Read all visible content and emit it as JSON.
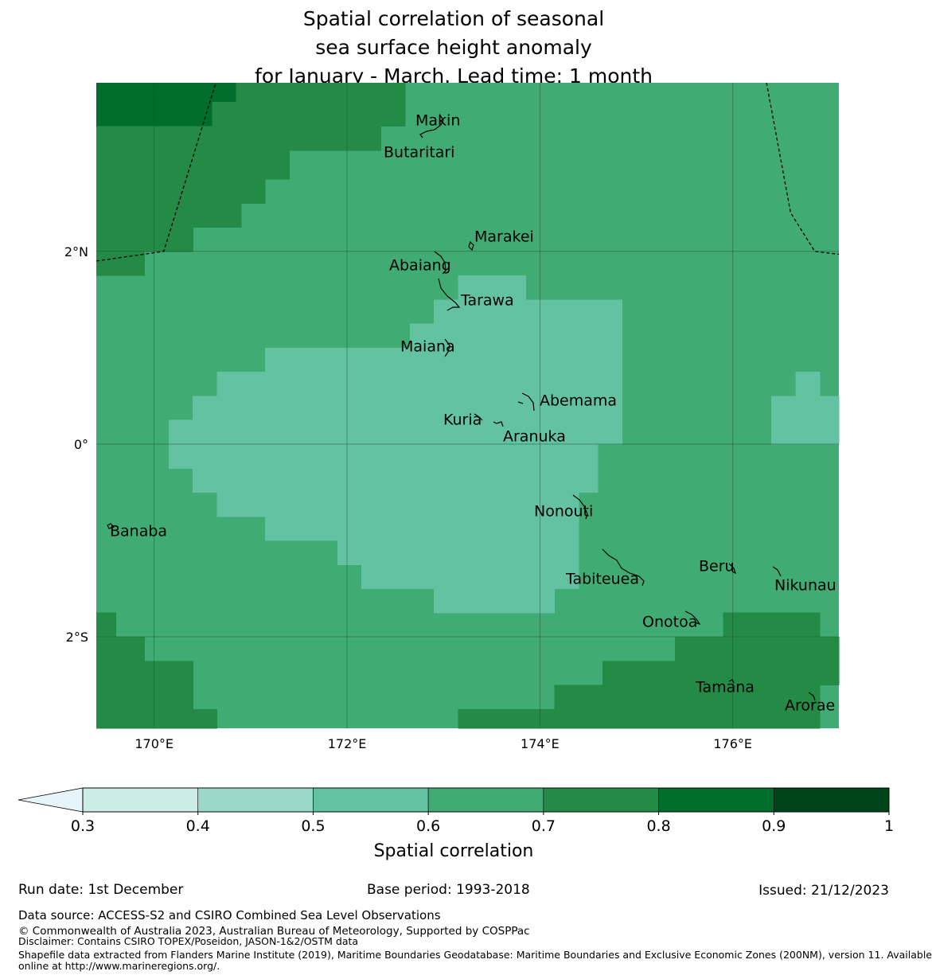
{
  "title": {
    "line1": "Spatial correlation of seasonal",
    "line2": "sea surface height anomaly",
    "line3": "for January - March. Lead time: 1 month"
  },
  "map": {
    "lon_range": [
      169.4,
      177.1
    ],
    "lat_range": [
      -2.95,
      3.75
    ],
    "lon_ticks": [
      {
        "value": 170,
        "label": "170°E"
      },
      {
        "value": 172,
        "label": "172°E"
      },
      {
        "value": 174,
        "label": "174°E"
      },
      {
        "value": 176,
        "label": "176°E"
      }
    ],
    "lat_ticks": [
      {
        "value": 2,
        "label": "2°N"
      },
      {
        "value": 0,
        "label": "0°"
      },
      {
        "value": -2,
        "label": "2°S"
      }
    ],
    "islands": [
      {
        "name": "Makin",
        "lon": 173.0,
        "lat": 3.25
      },
      {
        "name": "Butaritari",
        "lon": 172.8,
        "lat": 3.08
      },
      {
        "name": "Marakei",
        "lon": 173.28,
        "lat": 2.0
      },
      {
        "name": "Abaiang",
        "lon": 172.95,
        "lat": 1.85
      },
      {
        "name": "Tarawa",
        "lon": 173.05,
        "lat": 1.4
      },
      {
        "name": "Maiana",
        "lon": 173.0,
        "lat": 0.92
      },
      {
        "name": "Abemama",
        "lon": 173.88,
        "lat": 0.43
      },
      {
        "name": "Kuria",
        "lon": 173.4,
        "lat": 0.22
      },
      {
        "name": "Aranuka",
        "lon": 173.6,
        "lat": 0.15
      },
      {
        "name": "Nonouti",
        "lon": 174.4,
        "lat": -0.65
      },
      {
        "name": "Banaba",
        "lon": 169.53,
        "lat": -0.88
      },
      {
        "name": "Tabiteuea",
        "lon": 174.8,
        "lat": -1.4
      },
      {
        "name": "Beru",
        "lon": 176.0,
        "lat": -1.34
      },
      {
        "name": "Nikunau",
        "lon": 176.45,
        "lat": -1.38
      },
      {
        "name": "Onotoa",
        "lon": 175.55,
        "lat": -1.82
      },
      {
        "name": "Tamana",
        "lon": 175.98,
        "lat": -2.5
      },
      {
        "name": "Arorae",
        "lon": 176.82,
        "lat": -2.65
      }
    ],
    "eez_boundaries": [
      {
        "name": "western",
        "points": [
          [
            169.4,
            1.9
          ],
          [
            170.1,
            2.0
          ],
          [
            170.64,
            3.75
          ]
        ]
      },
      {
        "name": "eastern",
        "points": [
          [
            176.35,
            3.75
          ],
          [
            176.6,
            2.4
          ],
          [
            176.85,
            2.0
          ],
          [
            177.1,
            1.97
          ]
        ]
      }
    ]
  },
  "chart_data": {
    "type": "heatmap",
    "title": "Spatial correlation of seasonal sea surface height anomaly for January - March. Lead time: 1 month",
    "variable": "Spatial correlation",
    "grid_resolution_deg": 0.25,
    "classes": [
      {
        "range": [
          0.6,
          0.7
        ],
        "color": "#41ab74"
      },
      {
        "range": [
          0.7,
          0.8
        ],
        "color": "#238b45"
      },
      {
        "range": [
          0.8,
          0.9
        ],
        "color": "#006d2c"
      },
      {
        "range": [
          0.5,
          0.6
        ],
        "color": "#62c2a2"
      }
    ],
    "background_class": "0.6-0.7",
    "regions": [
      {
        "class": "0.8-0.9",
        "lon": [
          169.4,
          170.6
        ],
        "lat": [
          3.3,
          3.75
        ]
      },
      {
        "class": "0.8-0.9",
        "lon": [
          170.6,
          170.85
        ],
        "lat": [
          3.55,
          3.75
        ]
      },
      {
        "class": "0.7-0.8",
        "lon": [
          170.6,
          170.85
        ],
        "lat": [
          3.3,
          3.55
        ]
      },
      {
        "class": "0.7-0.8",
        "lon": [
          170.85,
          172.6
        ],
        "lat": [
          3.3,
          3.75
        ]
      },
      {
        "class": "0.7-0.8",
        "lon": [
          169.4,
          172.35
        ],
        "lat": [
          3.05,
          3.3
        ]
      },
      {
        "class": "0.7-0.8",
        "lon": [
          169.4,
          171.4
        ],
        "lat": [
          2.75,
          3.05
        ]
      },
      {
        "class": "0.7-0.8",
        "lon": [
          169.4,
          171.15
        ],
        "lat": [
          2.5,
          2.75
        ]
      },
      {
        "class": "0.7-0.8",
        "lon": [
          169.4,
          170.9
        ],
        "lat": [
          2.25,
          2.5
        ]
      },
      {
        "class": "0.7-0.8",
        "lon": [
          169.4,
          170.4
        ],
        "lat": [
          2.0,
          2.25
        ]
      },
      {
        "class": "0.7-0.8",
        "lon": [
          169.4,
          169.9
        ],
        "lat": [
          1.75,
          2.0
        ]
      },
      {
        "class": "0.5-0.6",
        "lon": [
          173.15,
          173.85
        ],
        "lat": [
          1.5,
          1.75
        ]
      },
      {
        "class": "0.5-0.6",
        "lon": [
          172.9,
          174.85
        ],
        "lat": [
          1.25,
          1.5
        ]
      },
      {
        "class": "0.5-0.6",
        "lon": [
          172.65,
          174.85
        ],
        "lat": [
          1.0,
          1.25
        ]
      },
      {
        "class": "0.5-0.6",
        "lon": [
          171.15,
          174.85
        ],
        "lat": [
          0.75,
          1.0
        ]
      },
      {
        "class": "0.5-0.6",
        "lon": [
          170.65,
          174.85
        ],
        "lat": [
          0.5,
          0.75
        ]
      },
      {
        "class": "0.5-0.6",
        "lon": [
          170.4,
          174.85
        ],
        "lat": [
          0.25,
          0.5
        ]
      },
      {
        "class": "0.5-0.6",
        "lon": [
          170.15,
          174.85
        ],
        "lat": [
          0.0,
          0.25
        ]
      },
      {
        "class": "0.5-0.6",
        "lon": [
          170.15,
          174.6
        ],
        "lat": [
          -0.25,
          0.0
        ]
      },
      {
        "class": "0.5-0.6",
        "lon": [
          170.4,
          174.6
        ],
        "lat": [
          -0.5,
          -0.25
        ]
      },
      {
        "class": "0.5-0.6",
        "lon": [
          170.65,
          174.4
        ],
        "lat": [
          -0.75,
          -0.5
        ]
      },
      {
        "class": "0.5-0.6",
        "lon": [
          171.15,
          174.4
        ],
        "lat": [
          -1.0,
          -0.75
        ]
      },
      {
        "class": "0.5-0.6",
        "lon": [
          171.9,
          174.4
        ],
        "lat": [
          -1.25,
          -1.0
        ]
      },
      {
        "class": "0.5-0.6",
        "lon": [
          172.15,
          174.4
        ],
        "lat": [
          -1.5,
          -1.25
        ]
      },
      {
        "class": "0.5-0.6",
        "lon": [
          172.9,
          174.15
        ],
        "lat": [
          -1.75,
          -1.5
        ]
      },
      {
        "class": "0.5-0.6",
        "lon": [
          176.65,
          176.9
        ],
        "lat": [
          0.5,
          0.75
        ]
      },
      {
        "class": "0.5-0.6",
        "lon": [
          176.4,
          177.1
        ],
        "lat": [
          0.0,
          0.5
        ]
      },
      {
        "class": "0.7-0.8",
        "lon": [
          169.4,
          169.6
        ],
        "lat": [
          -2.0,
          -1.75
        ]
      },
      {
        "class": "0.7-0.8",
        "lon": [
          169.4,
          169.9
        ],
        "lat": [
          -2.25,
          -2.0
        ]
      },
      {
        "class": "0.7-0.8",
        "lon": [
          169.4,
          170.4
        ],
        "lat": [
          -2.75,
          -2.25
        ]
      },
      {
        "class": "0.7-0.8",
        "lon": [
          169.4,
          170.65
        ],
        "lat": [
          -2.95,
          -2.75
        ]
      },
      {
        "class": "0.7-0.8",
        "lon": [
          175.9,
          176.9
        ],
        "lat": [
          -2.0,
          -1.75
        ]
      },
      {
        "class": "0.7-0.8",
        "lon": [
          175.4,
          177.1
        ],
        "lat": [
          -2.25,
          -2.0
        ]
      },
      {
        "class": "0.7-0.8",
        "lon": [
          174.65,
          177.1
        ],
        "lat": [
          -2.5,
          -2.25
        ]
      },
      {
        "class": "0.7-0.8",
        "lon": [
          174.15,
          176.9
        ],
        "lat": [
          -2.75,
          -2.5
        ]
      },
      {
        "class": "0.7-0.8",
        "lon": [
          173.15,
          176.9
        ],
        "lat": [
          -2.95,
          -2.75
        ]
      }
    ]
  },
  "colorbar": {
    "label": "Spatial correlation",
    "ticks": [
      "0.3",
      "0.4",
      "0.5",
      "0.6",
      "0.7",
      "0.8",
      "0.9",
      "1"
    ],
    "below_color": "#e5f5f9",
    "bins": [
      {
        "range": [
          0.3,
          0.4
        ],
        "color": "#ccece6"
      },
      {
        "range": [
          0.4,
          0.5
        ],
        "color": "#99d8c9"
      },
      {
        "range": [
          0.5,
          0.6
        ],
        "color": "#62c2a2"
      },
      {
        "range": [
          0.6,
          0.7
        ],
        "color": "#41ab74"
      },
      {
        "range": [
          0.7,
          0.8
        ],
        "color": "#238b45"
      },
      {
        "range": [
          0.8,
          0.9
        ],
        "color": "#006d2c"
      },
      {
        "range": [
          0.9,
          1.0
        ],
        "color": "#00441b"
      }
    ]
  },
  "footer": {
    "run_date": "Run date: 1st December",
    "base_period": "Base period: 1993-2018",
    "issued": "Issued: 21/12/2023",
    "data_source": "Data source: ACCESS-S2 and CSIRO Combined Sea Level Observations",
    "copyright": "© Commonwealth of Australia 2023, Australian Bureau of Meteorology, Supported by COSPPac",
    "disclaimer": "Disclaimer: Contains CSIRO TOPEX/Poseidon, JASON-1&2/OSTM data",
    "shapefile_line1": "Shapefile data extracted from Flanders Marine Institute (2019), Maritime Boundaries Geodatabase: Maritime Boundaries and Exclusive Economic Zones (200NM), version 11. Available",
    "shapefile_line2": "online at http://www.marineregions.org/."
  }
}
